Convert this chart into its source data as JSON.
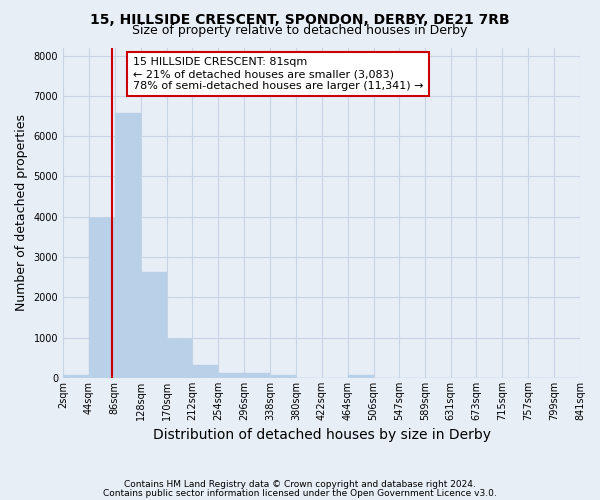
{
  "title": "15, HILLSIDE CRESCENT, SPONDON, DERBY, DE21 7RB",
  "subtitle": "Size of property relative to detached houses in Derby",
  "xlabel": "Distribution of detached houses by size in Derby",
  "ylabel": "Number of detached properties",
  "footnote1": "Contains HM Land Registry data © Crown copyright and database right 2024.",
  "footnote2": "Contains public sector information licensed under the Open Government Licence v3.0.",
  "bar_edges": [
    2,
    44,
    86,
    128,
    170,
    212,
    254,
    296,
    338,
    380,
    422,
    464,
    506,
    547,
    589,
    631,
    673,
    715,
    757,
    799,
    841
  ],
  "bar_heights": [
    70,
    3980,
    6580,
    2620,
    960,
    320,
    130,
    110,
    70,
    0,
    0,
    80,
    0,
    0,
    0,
    0,
    0,
    0,
    0,
    0
  ],
  "bar_color": "#b8d0e8",
  "bar_edgecolor": "#b8d0e8",
  "grid_color": "#c8d4e4",
  "background_color": "#e8eef6",
  "property_line_x": 81,
  "property_line_color": "#cc0000",
  "annotation_line1": "15 HILLSIDE CRESCENT: 81sqm",
  "annotation_line2": "← 21% of detached houses are smaller (3,083)",
  "annotation_line3": "78% of semi-detached houses are larger (11,341) →",
  "annotation_box_color": "#ffffff",
  "annotation_box_edgecolor": "#cc0000",
  "ylim": [
    0,
    8200
  ],
  "yticks": [
    0,
    1000,
    2000,
    3000,
    4000,
    5000,
    6000,
    7000,
    8000
  ],
  "tick_labels": [
    "2sqm",
    "44sqm",
    "86sqm",
    "128sqm",
    "170sqm",
    "212sqm",
    "254sqm",
    "296sqm",
    "338sqm",
    "380sqm",
    "422sqm",
    "464sqm",
    "506sqm",
    "547sqm",
    "589sqm",
    "631sqm",
    "673sqm",
    "715sqm",
    "757sqm",
    "799sqm",
    "841sqm"
  ],
  "title_fontsize": 10,
  "subtitle_fontsize": 9,
  "annotation_fontsize": 8,
  "axis_label_fontsize": 9,
  "tick_fontsize": 7,
  "footnote_fontsize": 6.5
}
